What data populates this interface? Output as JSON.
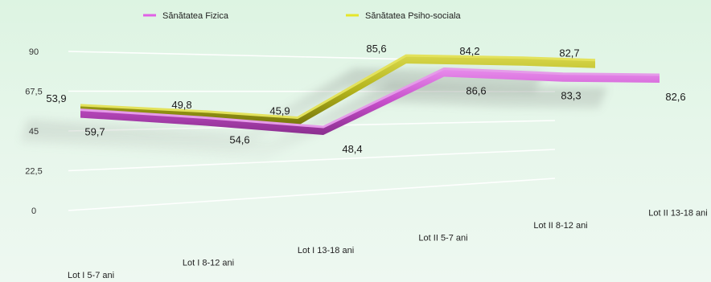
{
  "chart_data": {
    "type": "line",
    "title": "",
    "xlabel": "",
    "ylabel": "",
    "categories": [
      "Lot I 5-7 ani",
      "Lot I 8-12 ani",
      "Lot I 13-18 ani",
      "Lot II 5-7 ani",
      "Lot II 8-12 ani",
      "Lot II 13-18 ani"
    ],
    "series": [
      {
        "name": "Sănătatea Fizica",
        "values": [
          59.7,
          54.6,
          48.4,
          86.6,
          83.3,
          82.6
        ],
        "labels": [
          "59,7",
          "54,6",
          "48,4",
          "86,6",
          "83,3",
          "82,6"
        ],
        "color": "#c24fc7"
      },
      {
        "name": "Sănătatea Psiho-sociala",
        "values": [
          53.9,
          49.8,
          45.9,
          85.6,
          84.2,
          82.7
        ],
        "labels": [
          "53,9",
          "49,8",
          "45,9",
          "85,6",
          "84,2",
          "82,7"
        ],
        "color": "#b5b51d"
      }
    ],
    "y_ticks": [
      "0",
      "22,5",
      "45",
      "67,5",
      "90"
    ],
    "ylim": [
      0,
      90
    ],
    "grid": true,
    "legend_position": "top",
    "style": "3d-ribbon"
  }
}
